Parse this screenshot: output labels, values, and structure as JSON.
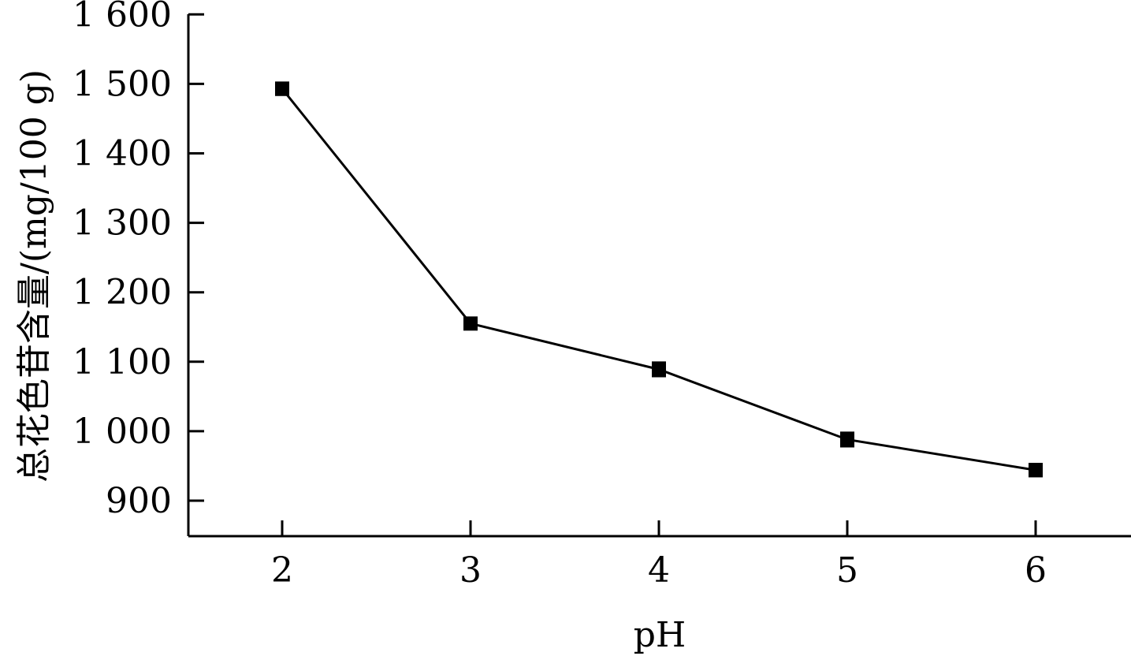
{
  "chart_data": {
    "type": "line",
    "x": [
      2,
      3,
      4,
      5,
      6
    ],
    "series": [
      {
        "values": [
          1493,
          1155,
          1089,
          988,
          944
        ],
        "errors": [
          9,
          6,
          10,
          10,
          9
        ],
        "marker": "square",
        "color": "#000000"
      }
    ],
    "xlabel": "pH",
    "ylabel": "总花色苷含量/(mg/100 g)",
    "xlim": [
      1.5,
      6.5
    ],
    "ylim": [
      850,
      1600
    ],
    "xticks": [
      2,
      3,
      4,
      5,
      6
    ],
    "xtick_labels": [
      "2",
      "3",
      "4",
      "5",
      "6"
    ],
    "yticks": [
      900,
      1000,
      1100,
      1200,
      1300,
      1400,
      1500,
      1600
    ],
    "ytick_labels": [
      "900",
      "1 000",
      "1 100",
      "1 200",
      "1 300",
      "1 400",
      "1 500",
      "1 600"
    ],
    "grid": false,
    "legend": "none"
  }
}
